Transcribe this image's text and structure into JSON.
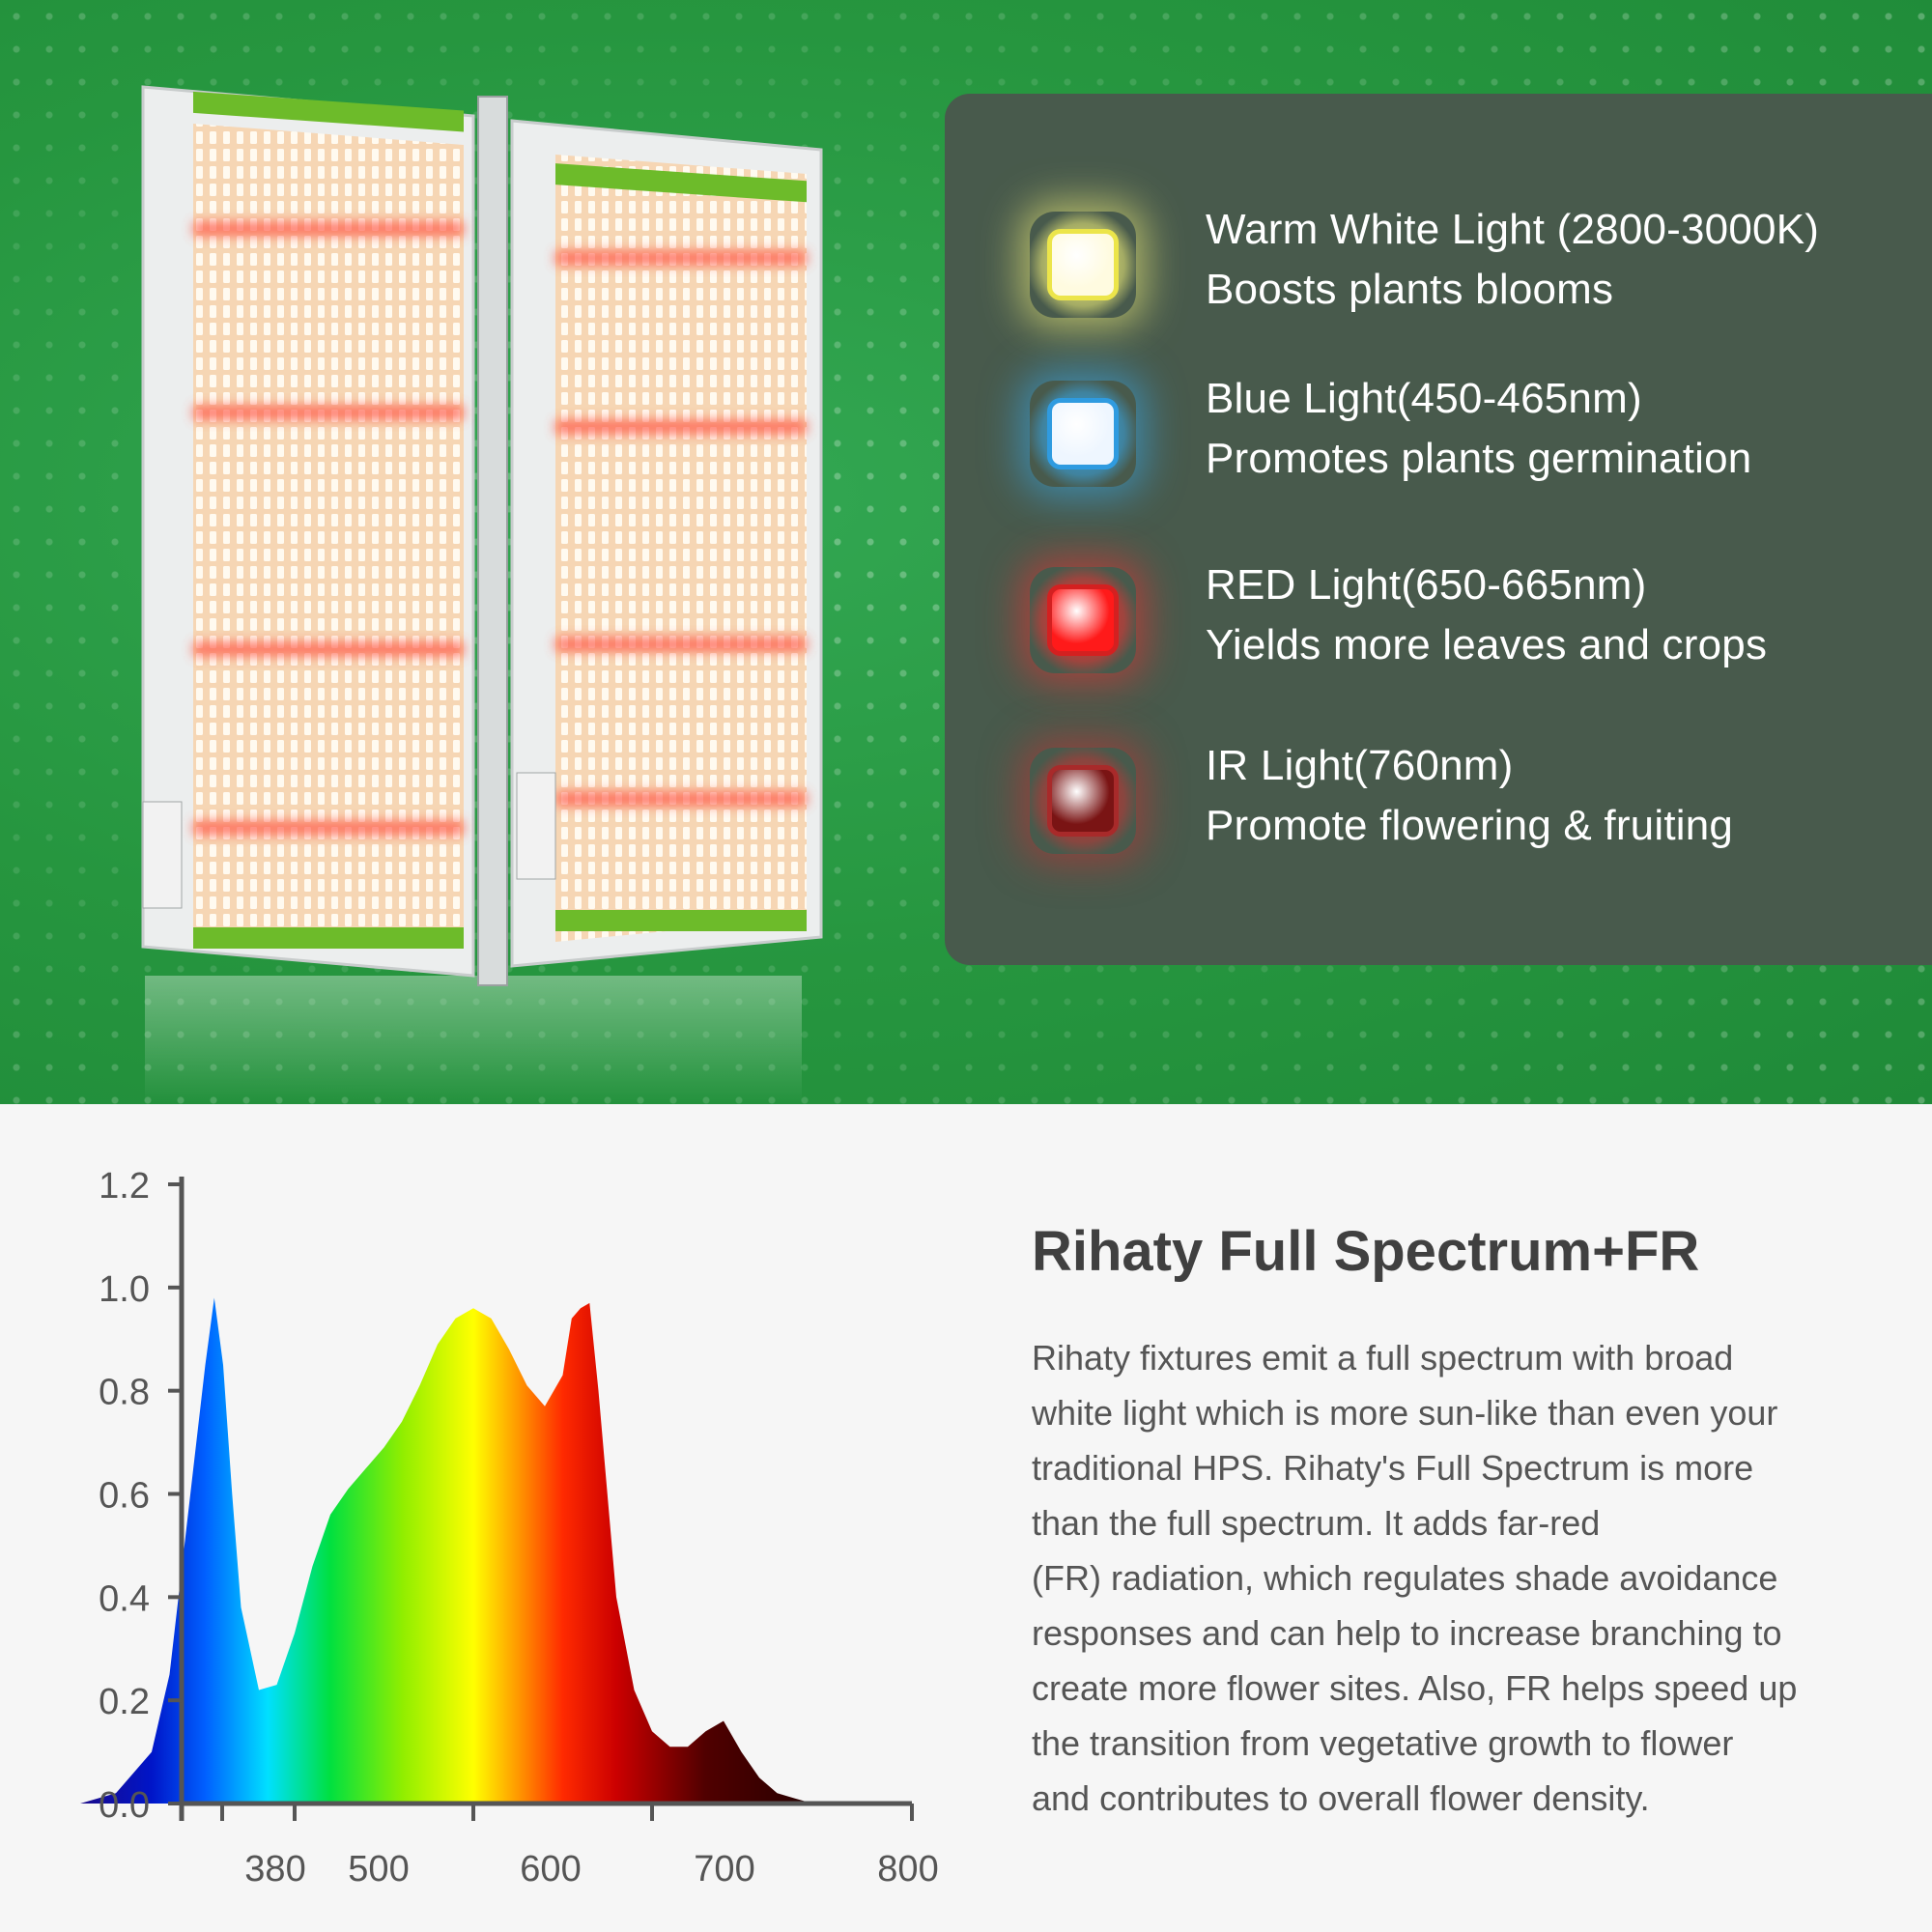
{
  "lights": [
    {
      "title": "Warm White Light (2800-3000K)",
      "desc": "Boosts plants blooms",
      "icon": "warm-white-led-icon",
      "glow": "#f4f27a",
      "core": "#fffbe0",
      "rim": "#ece54a"
    },
    {
      "title": "Blue Light(450-465nm)",
      "desc": "Promotes plants germination",
      "icon": "blue-led-icon",
      "glow": "#38a6e6",
      "core": "#eef6ff",
      "rim": "#2f9be0"
    },
    {
      "title": "RED Light(650-665nm)",
      "desc": "Yields more leaves and crops",
      "icon": "red-led-icon",
      "glow": "#e83232",
      "core": "#ff1a1a",
      "rim": "#d42020"
    },
    {
      "title": "IR Light(760nm)",
      "desc": "Promote flowering & fruiting",
      "icon": "ir-led-icon",
      "glow": "#c03434",
      "core": "#7a1414",
      "rim": "#a82a2a"
    }
  ],
  "section": {
    "heading": "Rihaty Full Spectrum+FR",
    "body_lines": [
      "Rihaty fixtures emit a full spectrum with broad",
      "white light which is more sun-like than even your",
      "traditional HPS. Rihaty's Full Spectrum is more",
      "than the full spectrum. It adds far-red",
      "(FR) radiation, which regulates shade avoidance",
      "responses and can help to increase branching to",
      "create more flower sites. Also, FR helps speed up",
      "the transition from vegetative growth to flower",
      "and contributes to overall flower density."
    ]
  },
  "chart_data": {
    "type": "area",
    "title": "",
    "xlabel": "",
    "ylabel": "",
    "ylim": [
      0,
      1.2
    ],
    "yticks": [
      "0.0",
      "0.2",
      "0.4",
      "0.6",
      "0.8",
      "1.0",
      "1.2"
    ],
    "xticks": [
      "380",
      "500",
      "600",
      "700",
      "800"
    ],
    "grid": false,
    "legend": "none",
    "x": [
      380,
      400,
      420,
      430,
      440,
      450,
      455,
      460,
      465,
      470,
      480,
      490,
      500,
      510,
      520,
      530,
      540,
      550,
      560,
      570,
      580,
      590,
      600,
      610,
      620,
      630,
      640,
      650,
      655,
      660,
      665,
      670,
      680,
      690,
      700,
      710,
      720,
      730,
      740,
      750,
      760,
      770,
      780,
      790,
      800
    ],
    "y": [
      0.0,
      0.02,
      0.1,
      0.25,
      0.55,
      0.85,
      0.98,
      0.85,
      0.6,
      0.38,
      0.22,
      0.23,
      0.33,
      0.46,
      0.56,
      0.61,
      0.65,
      0.69,
      0.74,
      0.81,
      0.89,
      0.94,
      0.96,
      0.94,
      0.88,
      0.81,
      0.77,
      0.83,
      0.94,
      0.96,
      0.97,
      0.8,
      0.4,
      0.22,
      0.14,
      0.11,
      0.11,
      0.14,
      0.16,
      0.1,
      0.05,
      0.02,
      0.01,
      0.0,
      0.0
    ]
  }
}
